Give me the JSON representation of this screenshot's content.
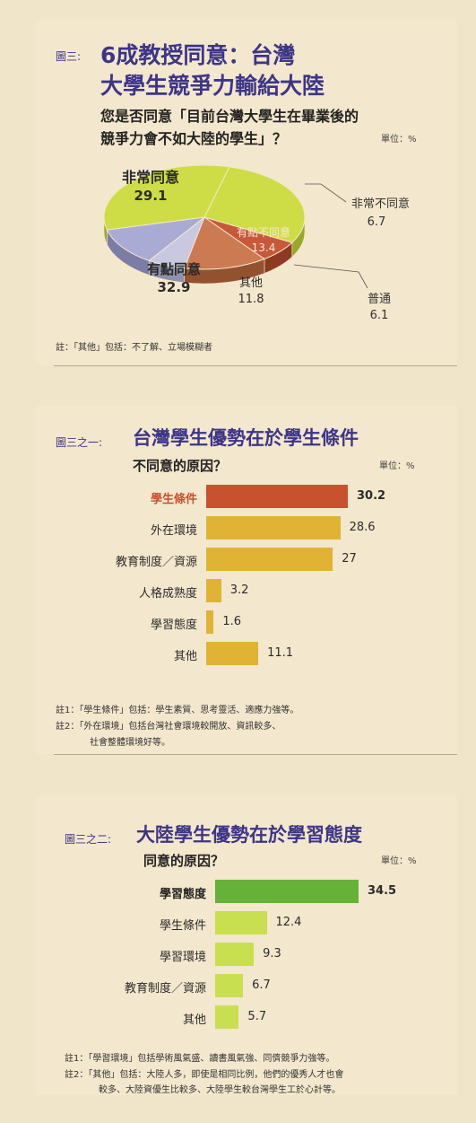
{
  "figure1": {
    "label": "圖三:",
    "title_line1": "6成教授同意：台灣",
    "title_line2": "大學生競爭力輸給大陸",
    "question_line1": "您是否同意「目前台灣大學生在畢業後的",
    "question_line2": "競爭力會不如大陸的學生」？",
    "unit": "單位：%",
    "note": "註：「其他」包括：不了解、立場模糊者"
  },
  "figure2": {
    "label": "圖三之一:",
    "title": "台灣學生優勢在於學生條件",
    "subtitle": "不同意的原因？",
    "unit": "單位：%",
    "note1": "註1：「學生條件」包括：學生素質、思考靈活、適應力強等。",
    "note2a": "註2：「外在環境」包括台灣社會環境較開放、資訊較多、",
    "note2b": "社會整體環境好等。"
  },
  "figure3": {
    "label": "圖三之二:",
    "title": "大陸學生優勢在於學習態度",
    "subtitle": "同意的原因？",
    "unit": "單位：%",
    "note1": "註1：「學習環境」包括學術風氣盛、讀書風氣強、同儕競爭力強等。",
    "note2a": "註2：「其他」包括：大陸人多，即使是相同比例，他們的優秀人才也會",
    "note2b": "較多、大陸資優生比較多、大陸學生較台灣學生工於心計等。"
  },
  "chart_data": [
    {
      "type": "pie",
      "title": "6成教授同意：台灣大學生競爭力輸給大陸",
      "categories": [
        "非常同意",
        "非常不同意",
        "有點不同意",
        "普通",
        "其他",
        "有點同意"
      ],
      "values": [
        29.1,
        6.7,
        13.4,
        6.1,
        11.8,
        32.9
      ],
      "value_labels": [
        "29.1",
        "6.7",
        "13.4",
        "6.1",
        "11.8",
        "32.9"
      ],
      "colors": [
        "#cedd45",
        "#c8583a",
        "#cc7a52",
        "#c8c9e0",
        "#a9abd4",
        "#cedd45"
      ],
      "side_colors": [
        "#9aa82a",
        "#8e3a22",
        "#93522f",
        "#8f90ab",
        "#7b7da6",
        "#9aa82a"
      ]
    },
    {
      "type": "bar",
      "title": "台灣學生優勢在於學生條件",
      "categories": [
        "學生條件",
        "外在環境",
        "教育制度／資源",
        "人格成熟度",
        "學習態度",
        "其他"
      ],
      "values": [
        30.2,
        28.6,
        27,
        3.2,
        1.6,
        11.1
      ],
      "value_labels": [
        "30.2",
        "28.6",
        "27",
        "3.2",
        "1.6",
        "11.1"
      ],
      "highlight": 0,
      "colors": {
        "highlight": "#c9522e",
        "normal": "#e0b335"
      }
    },
    {
      "type": "bar",
      "title": "大陸學生優勢在於學習態度",
      "categories": [
        "學習態度",
        "學生條件",
        "學習環境",
        "教育制度／資源",
        "其他"
      ],
      "values": [
        34.5,
        12.4,
        9.3,
        6.7,
        5.7
      ],
      "value_labels": [
        "34.5",
        "12.4",
        "9.3",
        "6.7",
        "5.7"
      ],
      "highlight": 0,
      "colors": {
        "highlight": "#66b138",
        "normal": "#c8df50"
      }
    }
  ]
}
